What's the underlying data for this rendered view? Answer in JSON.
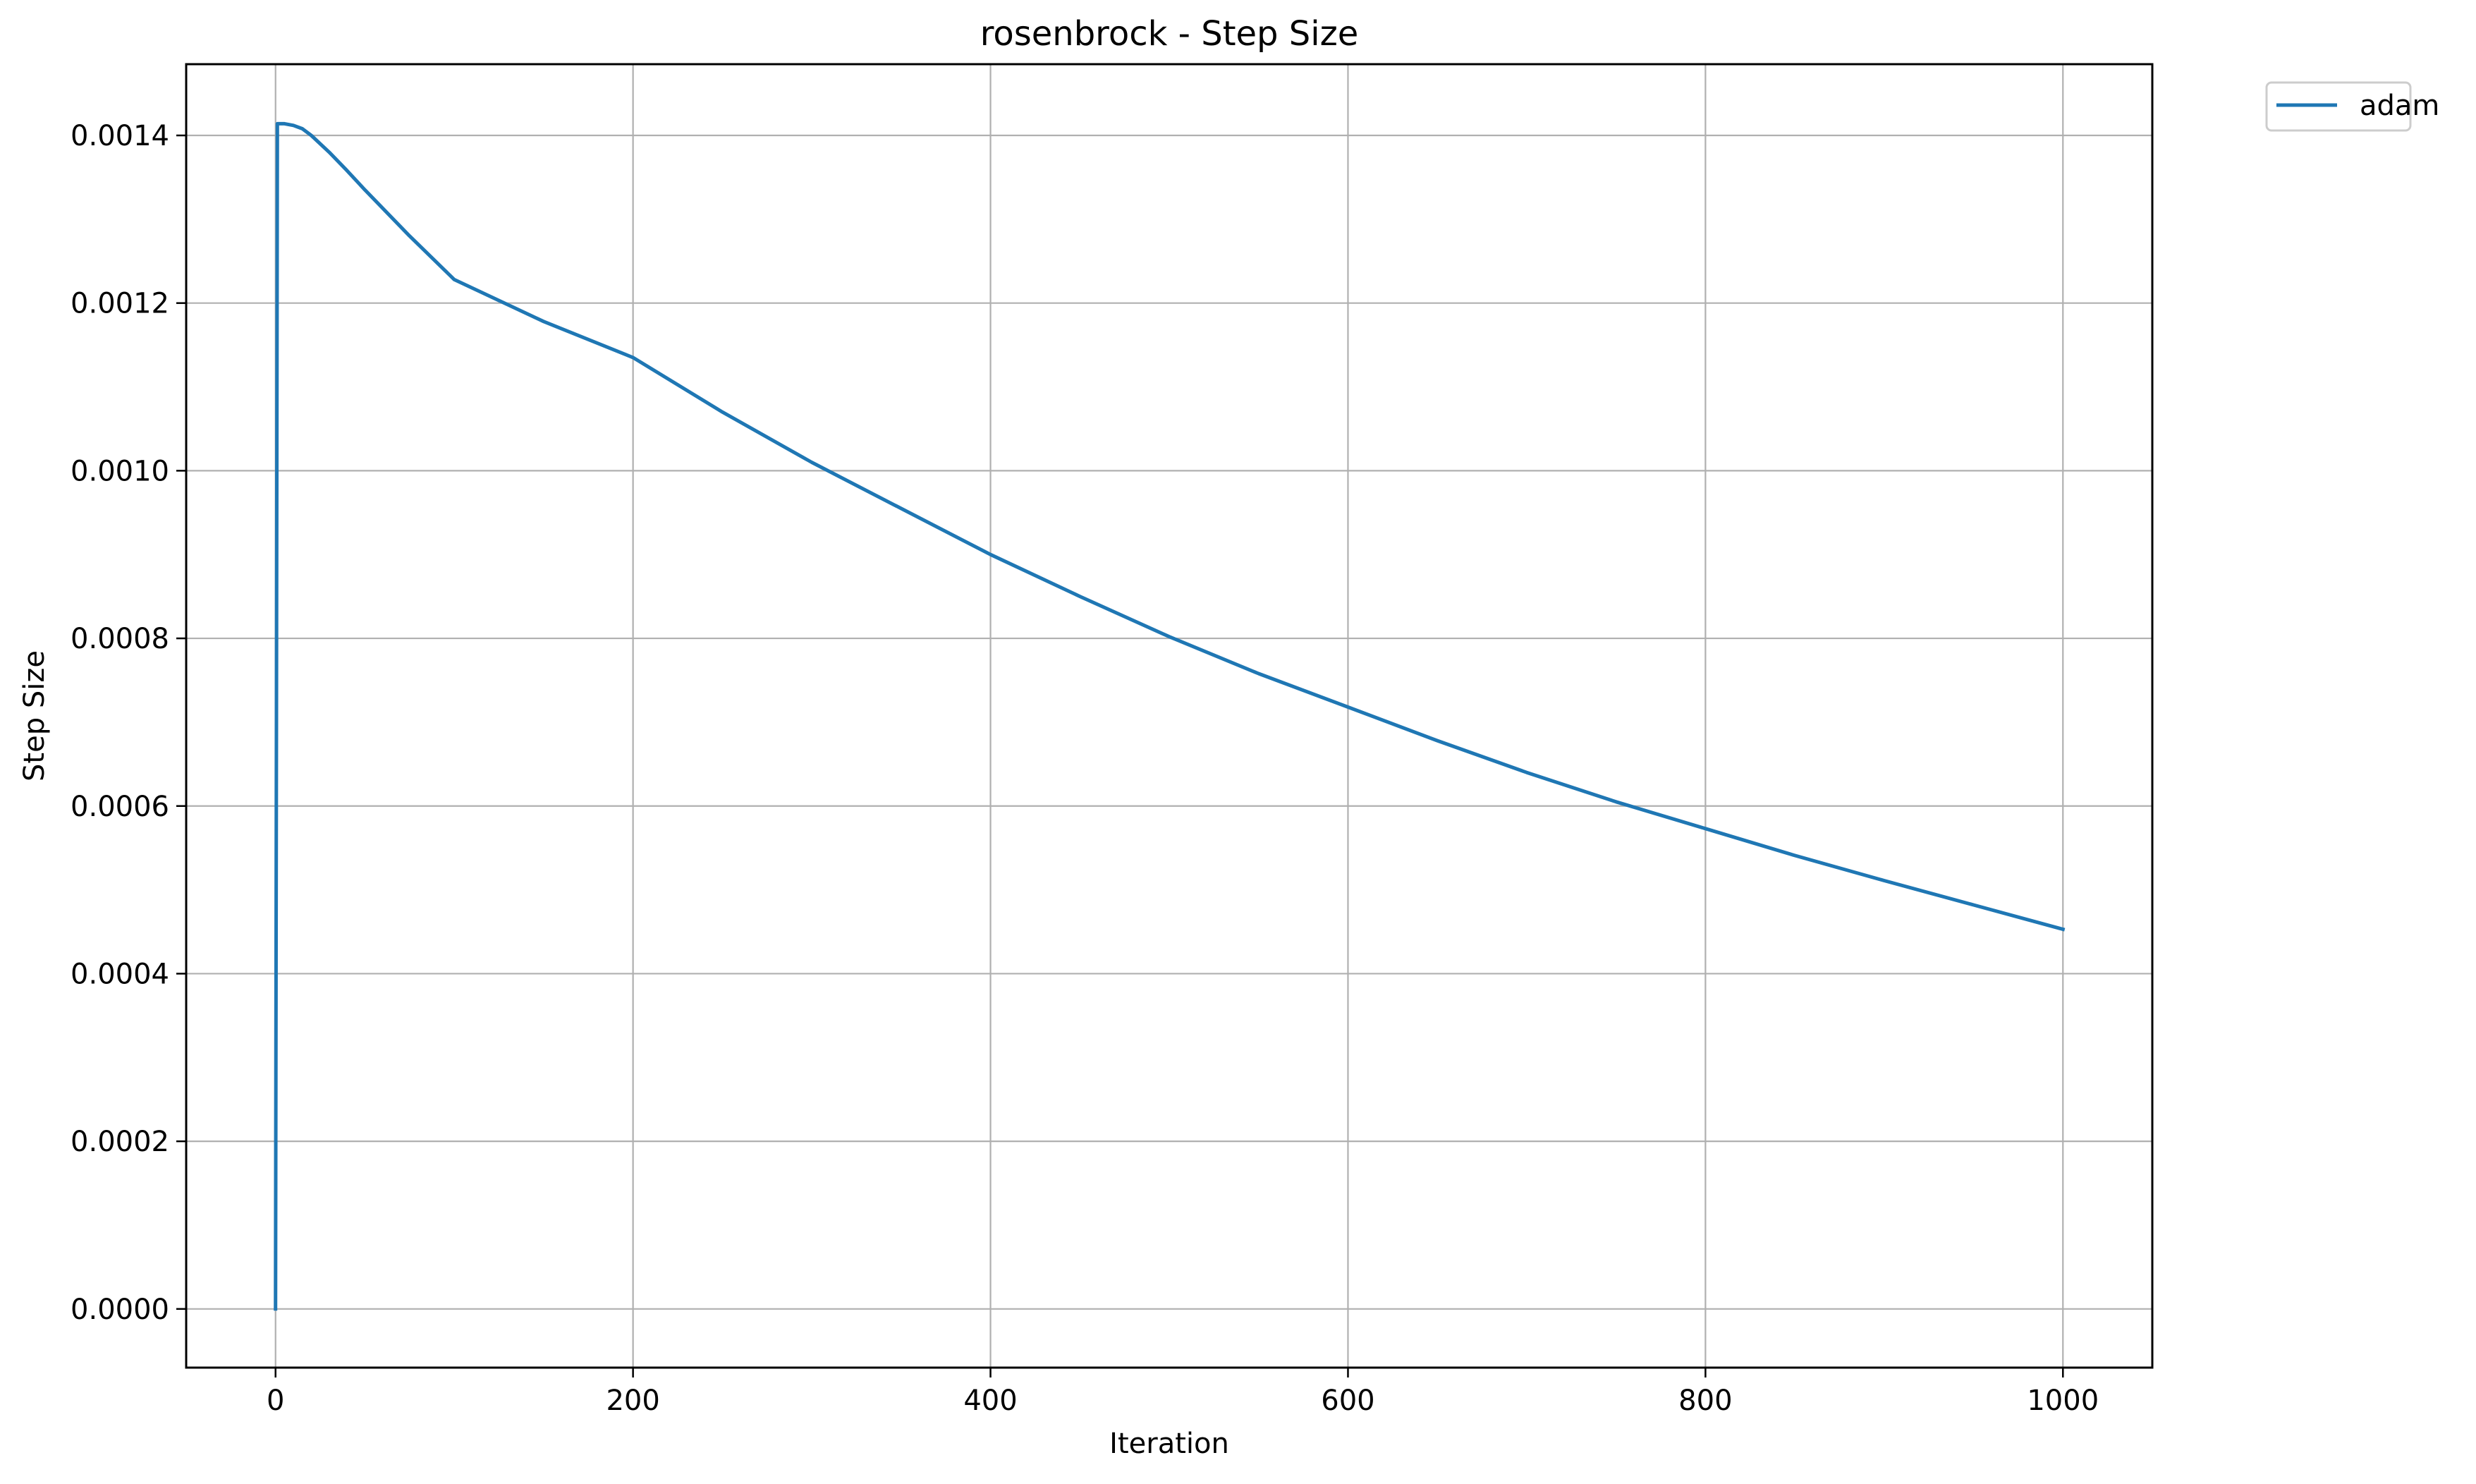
{
  "chart_data": {
    "type": "line",
    "title": "rosenbrock - Step Size",
    "xlabel": "Iteration",
    "ylabel": "Step Size",
    "xlim": [
      -50,
      1050
    ],
    "ylim": [
      -7e-05,
      0.001485
    ],
    "xticks": [
      0,
      200,
      400,
      600,
      800,
      1000
    ],
    "xtick_labels": [
      "0",
      "200",
      "400",
      "600",
      "800",
      "1000"
    ],
    "yticks": [
      0,
      0.0002,
      0.0004,
      0.0006,
      0.0008,
      0.001,
      0.0012,
      0.0014
    ],
    "ytick_labels": [
      "0.0000",
      "0.0002",
      "0.0004",
      "0.0006",
      "0.0008",
      "0.0010",
      "0.0012",
      "0.0014"
    ],
    "grid": true,
    "legend_position": "outside-top-right",
    "series": [
      {
        "name": "adam",
        "color": "#1f77b4",
        "x": [
          0,
          1,
          5,
          10,
          15,
          20,
          30,
          40,
          50,
          75,
          100,
          150,
          200,
          250,
          300,
          350,
          400,
          450,
          500,
          550,
          600,
          650,
          700,
          750,
          800,
          850,
          900,
          950,
          1000
        ],
        "y": [
          0,
          0.001414,
          0.001414,
          0.001412,
          0.001408,
          0.0014,
          0.00138,
          0.001358,
          0.001335,
          0.00128,
          0.001228,
          0.001178,
          0.001135,
          0.00107,
          0.00101,
          0.000955,
          0.0009,
          0.00085,
          0.000802,
          0.000758,
          0.000718,
          0.000678,
          0.00064,
          0.000605,
          0.000573,
          0.000541,
          0.000511,
          0.000482,
          0.000453
        ]
      }
    ]
  }
}
